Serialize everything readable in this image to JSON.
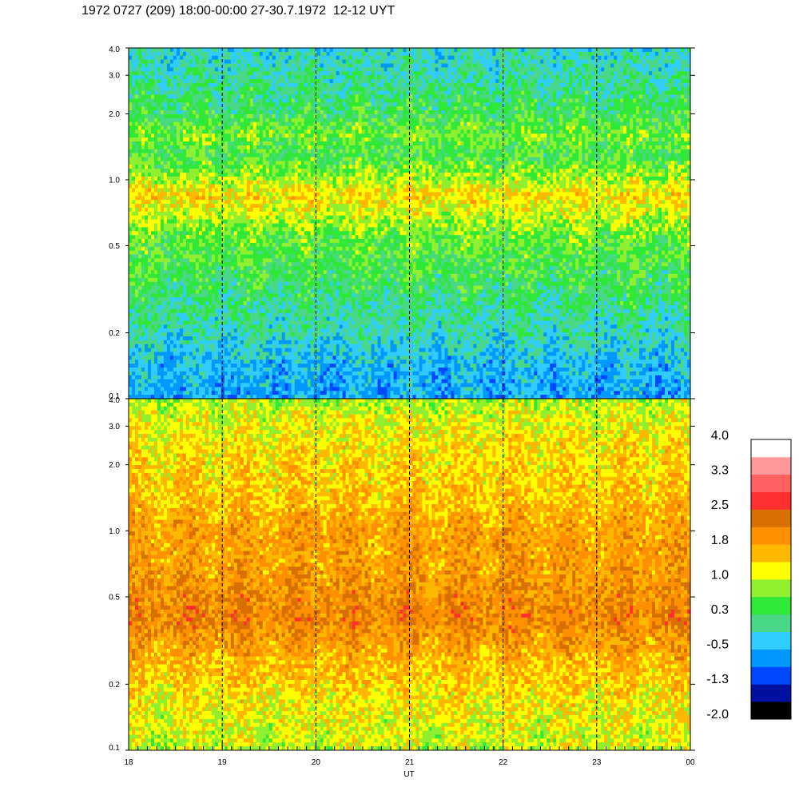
{
  "title": "1972 0727 (209) 18:00-00:00 27-30.7.1972  12-12 UYT",
  "chart_data": {
    "type": "heatmap",
    "title": "1972 0727 (209) 18:00-00:00 27-30.7.1972  12-12 UYT",
    "xlabel": "UT",
    "x_ticks": [
      "18",
      "19",
      "20",
      "21",
      "22",
      "23",
      "00"
    ],
    "xlim": [
      18,
      24
    ],
    "panels": [
      {
        "name": "upper",
        "ylim": [
          0.1,
          4.0
        ],
        "yscale": "log",
        "y_ticks": [
          "4.0",
          "3.0",
          "2.0",
          "1.0",
          "0.5",
          "0.2",
          "0.1"
        ],
        "y_tick_values": [
          4.0,
          3.0,
          2.0,
          1.0,
          0.5,
          0.2,
          0.1
        ],
        "frequency_profile": [
          {
            "y": 0.1,
            "v": -0.6
          },
          {
            "y": 0.15,
            "v": -0.4
          },
          {
            "y": 0.2,
            "v": -0.1
          },
          {
            "y": 0.3,
            "v": 0.2
          },
          {
            "y": 0.4,
            "v": 0.4
          },
          {
            "y": 0.55,
            "v": 0.6
          },
          {
            "y": 0.7,
            "v": 1.0
          },
          {
            "y": 0.85,
            "v": 1.4
          },
          {
            "y": 1.0,
            "v": 0.9
          },
          {
            "y": 1.3,
            "v": 0.4
          },
          {
            "y": 1.6,
            "v": 0.7
          },
          {
            "y": 2.0,
            "v": 0.3
          },
          {
            "y": 3.0,
            "v": 0.0
          },
          {
            "y": 4.0,
            "v": -0.2
          }
        ]
      },
      {
        "name": "lower",
        "ylim": [
          0.1,
          4.0
        ],
        "yscale": "log",
        "y_ticks": [
          "4.0",
          "3.0",
          "2.0",
          "1.0",
          "0.5",
          "0.2",
          "0.1"
        ],
        "y_tick_values": [
          4.0,
          3.0,
          2.0,
          1.0,
          0.5,
          0.2,
          0.1
        ],
        "frequency_profile": [
          {
            "y": 0.1,
            "v": 1.0
          },
          {
            "y": 0.15,
            "v": 1.2
          },
          {
            "y": 0.2,
            "v": 1.4
          },
          {
            "y": 0.3,
            "v": 1.8
          },
          {
            "y": 0.4,
            "v": 2.1
          },
          {
            "y": 0.5,
            "v": 2.0
          },
          {
            "y": 0.7,
            "v": 1.8
          },
          {
            "y": 1.0,
            "v": 1.8
          },
          {
            "y": 1.5,
            "v": 1.5
          },
          {
            "y": 2.0,
            "v": 1.4
          },
          {
            "y": 3.0,
            "v": 1.2
          },
          {
            "y": 4.0,
            "v": 0.9
          }
        ]
      }
    ],
    "vertical_dashed_lines_at": [
      19,
      20,
      21,
      22,
      23
    ],
    "colorbar": {
      "labels": [
        "4.0",
        "3.3",
        "2.5",
        "1.8",
        "1.0",
        "0.3",
        "-0.5",
        "-1.3",
        "-2.0"
      ],
      "min": -2.0,
      "max": 4.0,
      "colors": [
        "#000000",
        "#0010a0",
        "#0048ff",
        "#0098ff",
        "#30ccff",
        "#48d888",
        "#30e838",
        "#90f030",
        "#ffff00",
        "#ffb800",
        "#ff9000",
        "#d87000",
        "#ff3030",
        "#ff6060",
        "#ff9898",
        "#ffffff"
      ]
    }
  }
}
